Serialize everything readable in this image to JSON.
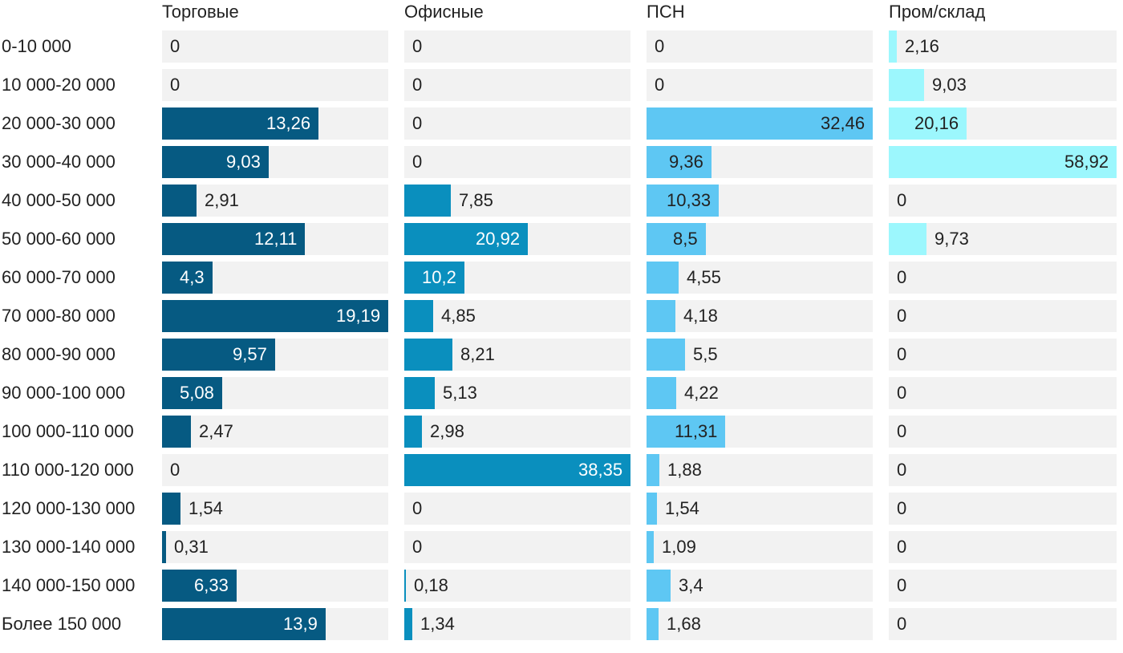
{
  "chart_data": {
    "type": "bar",
    "orientation": "horizontal",
    "layout": "small-multiples",
    "categories": [
      "0-10 000",
      "10 000-20 000",
      "20 000-30 000",
      "30 000-40 000",
      "40 000-50 000",
      "50 000-60 000",
      "60 000-70 000",
      "70 000-80 000",
      "80 000-90 000",
      "90 000-100 000",
      "100 000-110 000",
      "110 000-120 000",
      "120 000-130 000",
      "130 000-140 000",
      "140 000-150 000",
      "Более 150 000"
    ],
    "series": [
      {
        "name": "Торговые",
        "color": "#065a82",
        "max": 19.19,
        "values": [
          0,
          0,
          13.26,
          9.03,
          2.91,
          12.11,
          4.3,
          19.19,
          9.57,
          5.08,
          2.47,
          0,
          1.54,
          0.31,
          6.33,
          13.9
        ],
        "labels": [
          "0",
          "0",
          "13,26",
          "9,03",
          "2,91",
          "12,11",
          "4,3",
          "19,19",
          "9,57",
          "5,08",
          "2,47",
          "0",
          "1,54",
          "0,31",
          "6,33",
          "13,9"
        ]
      },
      {
        "name": "Офисные",
        "color": "#0a8fbe",
        "max": 38.35,
        "values": [
          0,
          0,
          0,
          0,
          7.85,
          20.92,
          10.2,
          4.85,
          8.21,
          5.13,
          2.98,
          38.35,
          0,
          0,
          0.18,
          1.34
        ],
        "labels": [
          "0",
          "0",
          "0",
          "0",
          "7,85",
          "20,92",
          "10,2",
          "4,85",
          "8,21",
          "5,13",
          "2,98",
          "38,35",
          "0",
          "0",
          "0,18",
          "1,34"
        ]
      },
      {
        "name": "ПСН",
        "color": "#5ec7f3",
        "max": 32.46,
        "values": [
          0,
          0,
          32.46,
          9.36,
          10.33,
          8.5,
          4.55,
          4.18,
          5.5,
          4.22,
          11.31,
          1.88,
          1.54,
          1.09,
          3.4,
          1.68
        ],
        "labels": [
          "0",
          "0",
          "32,46",
          "9,36",
          "10,33",
          "8,5",
          "4,55",
          "4,18",
          "5,5",
          "4,22",
          "11,31",
          "1,88",
          "1,54",
          "1,09",
          "3,4",
          "1,68"
        ]
      },
      {
        "name": "Пром/склад",
        "color": "#9cf7fd",
        "max": 58.92,
        "values": [
          2.16,
          9.03,
          20.16,
          58.92,
          0,
          9.73,
          0,
          0,
          0,
          0,
          0,
          0,
          0,
          0,
          0,
          0
        ],
        "labels": [
          "2,16",
          "9,03",
          "20,16",
          "58,92",
          "0",
          "9,73",
          "0",
          "0",
          "0",
          "0",
          "0",
          "0",
          "0",
          "0",
          "0",
          "0"
        ]
      }
    ]
  }
}
